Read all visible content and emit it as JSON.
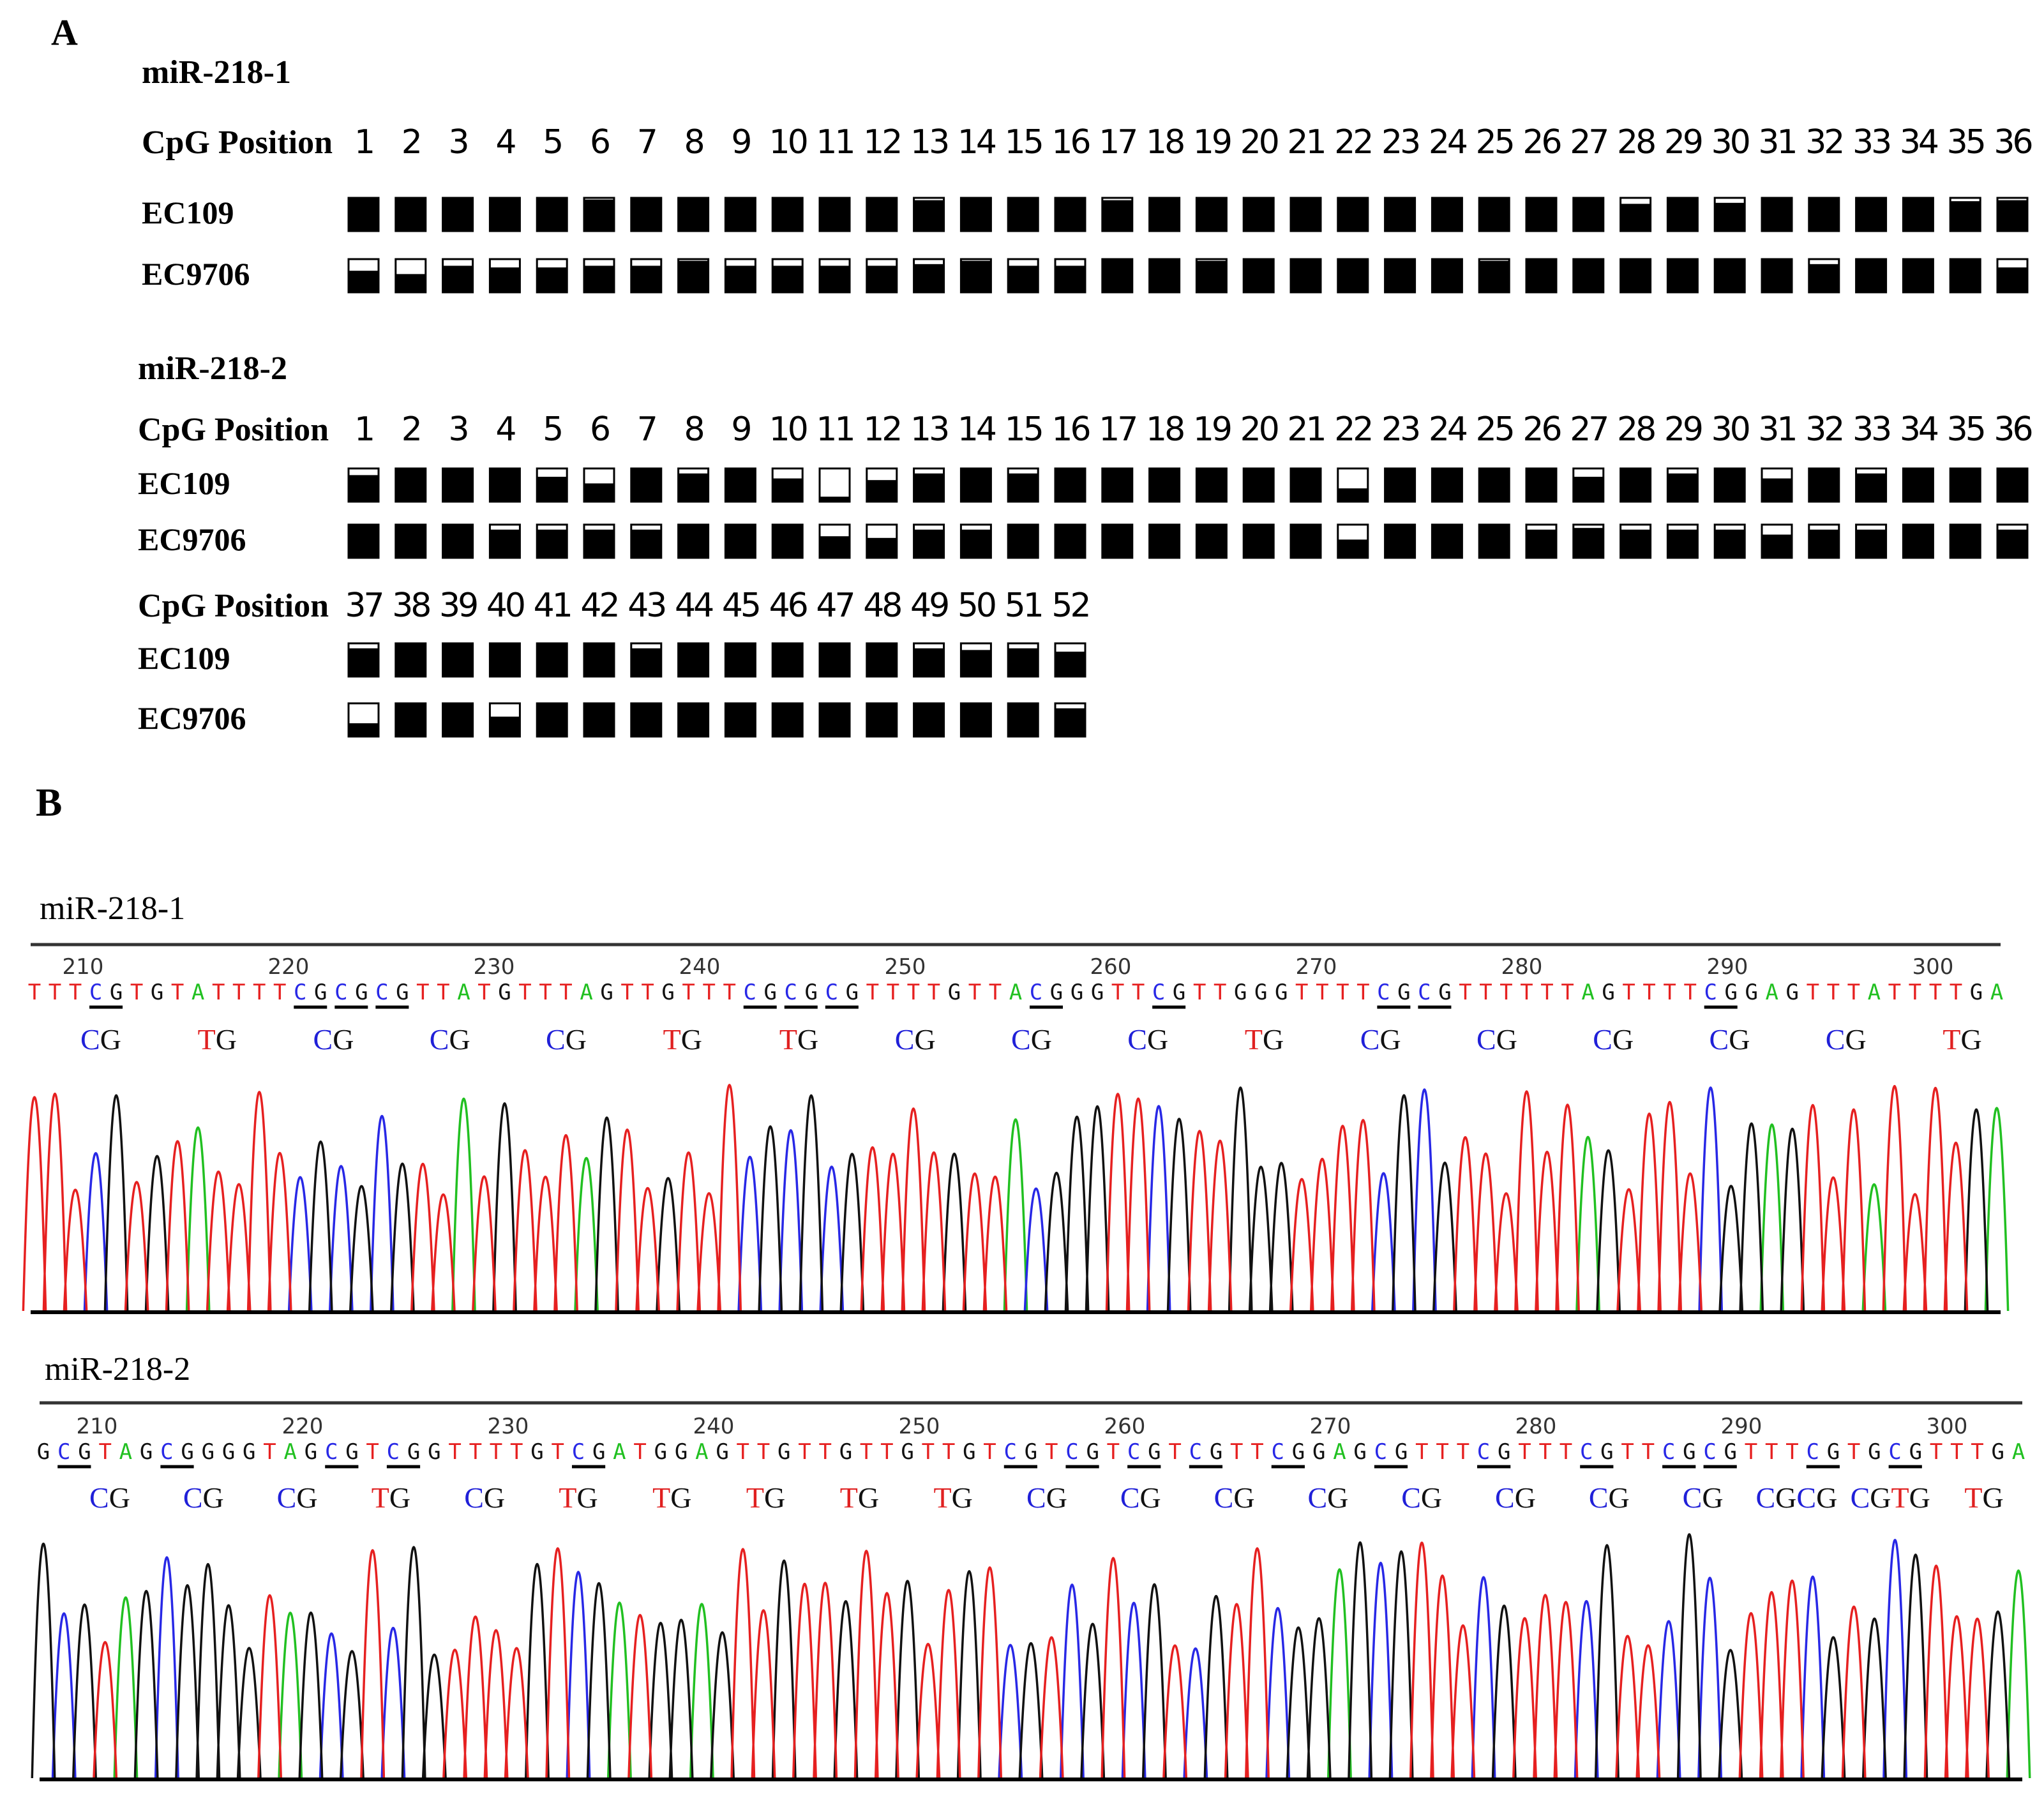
{
  "panel_a": {
    "label": "A",
    "blocks": [
      {
        "title": "miR-218-1",
        "rows": [
          {
            "header": "CpG Position",
            "positions": [
              "1",
              "2",
              "3",
              "4",
              "5",
              "6",
              "7",
              "8",
              "9",
              "10",
              "11",
              "12",
              "13",
              "14",
              "15",
              "16",
              "17",
              "18",
              "19",
              "20",
              "21",
              "22",
              "23",
              "24",
              "25",
              "26",
              "27",
              "28",
              "29",
              "30",
              "31",
              "32",
              "33",
              "34",
              "35",
              "36"
            ]
          },
          {
            "cell_line": "EC109",
            "methylation": [
              1,
              1,
              1,
              1,
              1,
              0.95,
              1,
              1,
              1,
              1,
              1,
              1,
              0.93,
              1,
              1,
              1,
              0.93,
              1,
              1,
              1,
              1,
              1,
              1,
              1,
              1,
              1,
              1,
              0.82,
              1,
              0.85,
              1,
              1,
              1,
              1,
              0.9,
              0.93
            ]
          },
          {
            "cell_line": "EC9706",
            "methylation": [
              0.65,
              0.55,
              0.8,
              0.75,
              0.75,
              0.8,
              0.8,
              0.95,
              0.8,
              0.8,
              0.8,
              0.8,
              0.85,
              0.95,
              0.8,
              0.8,
              1,
              1,
              0.95,
              1,
              1,
              1,
              1,
              1,
              0.95,
              1,
              1,
              1,
              1,
              1,
              1,
              0.85,
              1,
              1,
              1,
              0.75
            ]
          }
        ]
      },
      {
        "title": "miR-218-2",
        "rows": [
          {
            "header": "CpG Position",
            "positions": [
              "1",
              "2",
              "3",
              "4",
              "5",
              "6",
              "7",
              "8",
              "9",
              "10",
              "11",
              "12",
              "13",
              "14",
              "15",
              "16",
              "17",
              "18",
              "19",
              "20",
              "21",
              "22",
              "23",
              "24",
              "25",
              "26",
              "27",
              "28",
              "29",
              "30",
              "31",
              "32",
              "33",
              "34",
              "35",
              "36"
            ]
          },
          {
            "cell_line": "EC109",
            "methylation": [
              0.8,
              1,
              1,
              1,
              0.75,
              0.55,
              1,
              0.85,
              1,
              0.7,
              0.15,
              0.65,
              0.85,
              1,
              0.85,
              1,
              1,
              1,
              1,
              1,
              1,
              0.4,
              1,
              1,
              1,
              1,
              0.75,
              1,
              0.85,
              1,
              0.7,
              1,
              0.85,
              1,
              1,
              1
            ]
          },
          {
            "cell_line": "EC9706",
            "methylation": [
              1,
              1,
              1,
              0.85,
              0.85,
              0.85,
              0.85,
              1,
              1,
              1,
              0.65,
              0.6,
              0.85,
              0.85,
              1,
              1,
              1,
              1,
              1,
              1,
              1,
              0.55,
              1,
              1,
              1,
              0.85,
              0.9,
              0.85,
              0.85,
              0.85,
              0.7,
              0.85,
              0.85,
              1,
              1,
              0.85
            ]
          },
          {
            "header": "CpG Position",
            "positions": [
              "37",
              "38",
              "39",
              "40",
              "41",
              "42",
              "43",
              "44",
              "45",
              "46",
              "47",
              "48",
              "49",
              "50",
              "51",
              "52"
            ]
          },
          {
            "cell_line": "EC109",
            "methylation": [
              0.85,
              1,
              1,
              1,
              1,
              1,
              0.85,
              1,
              1,
              1,
              1,
              1,
              0.85,
              0.8,
              0.85,
              0.75
            ]
          },
          {
            "cell_line": "EC9706",
            "methylation": [
              0.4,
              1,
              1,
              0.6,
              1,
              1,
              1,
              1,
              1,
              1,
              1,
              1,
              1,
              1,
              1,
              0.85
            ]
          }
        ]
      }
    ]
  },
  "panel_b": {
    "label": "B",
    "traces": [
      {
        "title": "miR-218-1",
        "tick_labels": [
          "210",
          "220",
          "230",
          "240",
          "250",
          "260",
          "270",
          "280",
          "290",
          "300"
        ],
        "sequence": "TTTCGTGTATTTTCGCGCGTTATGTTTAGTTGTTTCGCGCGTTTTGTTACGGGTTCGTTGGGTTTTCGCGTTTTTTAGTTTTCGGAGTTTATTTTGA",
        "annotations": [
          "CG",
          "TG",
          "CG",
          "CG",
          "CG",
          "TG",
          "TG",
          "CG",
          "CG",
          "CG",
          "TG",
          "CG",
          "CG",
          "CG",
          "CG",
          "CG",
          "TG"
        ]
      },
      {
        "title": "miR-218-2",
        "tick_labels": [
          "210",
          "220",
          "230",
          "240",
          "250",
          "260",
          "270",
          "280",
          "290",
          "300"
        ],
        "sequence": "GCGTAGCGGGGTAGCGTCGGTTTTGTCGATGGAGTTGTTGTTGTTGTCGTCGTCGTCGTTCGGAGCGTTTCGTTTCGTTCGCGTTTCGTGCGTTTGA",
        "annotations": [
          "CG",
          "CG",
          "CG",
          "TG",
          "CG",
          "TG",
          "TG",
          "TG",
          "TG",
          "TG",
          "CG",
          "CG",
          "CG",
          "CG",
          "CG",
          "CG",
          "CG",
          "CG",
          "CGCG",
          "CGTG",
          "TG"
        ]
      }
    ],
    "base_colors": {
      "A": "#21c021",
      "C": "#2828e6",
      "G": "#111111",
      "T": "#e62020"
    },
    "annotation_colors": {
      "C": "#2020d8",
      "T": "#e02020",
      "G": "#111111"
    }
  }
}
